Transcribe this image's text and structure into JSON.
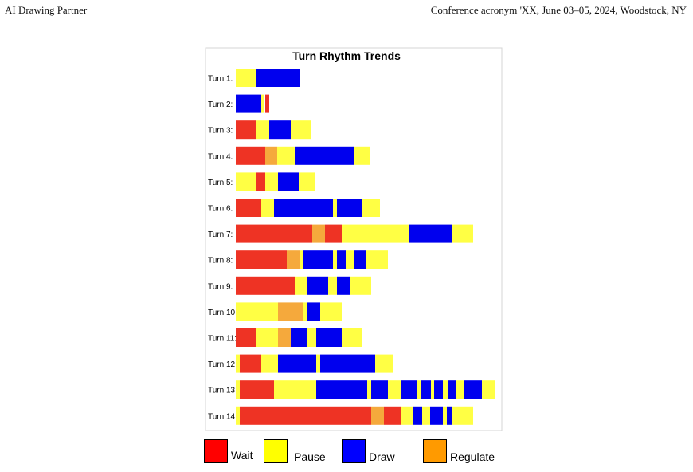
{
  "header": {
    "left": "AI Drawing Partner",
    "right": "Conference acronym 'XX, June 03–05, 2024, Woodstock, NY"
  },
  "colors": {
    "wait": "#ee3324",
    "pause": "#ffff44",
    "draw": "#0000ee",
    "regulate": "#f5a93c"
  },
  "legend": [
    {
      "key": "wait",
      "label": "Wait",
      "color": "#ff0000"
    },
    {
      "key": "pause",
      "label": "Pause",
      "color": "#ffff00"
    },
    {
      "key": "draw",
      "label": "Draw",
      "color": "#0000ff"
    },
    {
      "key": "regulate",
      "label": "Regulate",
      "color": "#ff9a00"
    }
  ],
  "chart_data": {
    "type": "bar",
    "title": "Turn Rhythm Trends",
    "xlabel": "",
    "ylabel": "",
    "stacked": true,
    "x_unit_note": "",
    "rows": [
      {
        "label": "Turn 1:",
        "segments": [
          [
            "pause",
            0,
            26
          ],
          [
            "draw",
            26,
            80
          ]
        ]
      },
      {
        "label": "Turn 2:",
        "segments": [
          [
            "draw",
            0,
            32
          ],
          [
            "pause",
            32,
            36
          ],
          [
            "wait",
            37,
            42
          ]
        ]
      },
      {
        "label": "Turn 3:",
        "segments": [
          [
            "wait",
            0,
            26
          ],
          [
            "pause",
            26,
            42
          ],
          [
            "draw",
            42,
            69
          ],
          [
            "pause",
            69,
            95
          ]
        ]
      },
      {
        "label": "Turn 4:",
        "segments": [
          [
            "wait",
            0,
            37
          ],
          [
            "regulate",
            37,
            52
          ],
          [
            "pause",
            52,
            74
          ],
          [
            "draw",
            74,
            148
          ],
          [
            "pause",
            148,
            169
          ]
        ]
      },
      {
        "label": "Turn 5:",
        "segments": [
          [
            "pause",
            0,
            26
          ],
          [
            "wait",
            26,
            37
          ],
          [
            "pause",
            37,
            53
          ],
          [
            "draw",
            53,
            79
          ],
          [
            "pause",
            79,
            100
          ]
        ]
      },
      {
        "label": "Turn 6:",
        "segments": [
          [
            "wait",
            0,
            32
          ],
          [
            "pause",
            32,
            48
          ],
          [
            "draw",
            48,
            122
          ],
          [
            "pause",
            122,
            127
          ],
          [
            "draw",
            127,
            159
          ],
          [
            "pause",
            159,
            181
          ]
        ]
      },
      {
        "label": "Turn 7:",
        "segments": [
          [
            "wait",
            0,
            96
          ],
          [
            "regulate",
            96,
            112
          ],
          [
            "wait",
            112,
            133
          ],
          [
            "pause",
            133,
            218
          ],
          [
            "draw",
            218,
            271
          ],
          [
            "pause",
            271,
            298
          ]
        ]
      },
      {
        "label": "Turn 8:",
        "segments": [
          [
            "wait",
            0,
            64
          ],
          [
            "regulate",
            64,
            80
          ],
          [
            "pause",
            80,
            85
          ],
          [
            "draw",
            85,
            122
          ],
          [
            "pause",
            122,
            127
          ],
          [
            "draw",
            127,
            138
          ],
          [
            "pause",
            138,
            148
          ],
          [
            "draw",
            148,
            164
          ],
          [
            "pause",
            164,
            191
          ]
        ]
      },
      {
        "label": "Turn 9:",
        "segments": [
          [
            "wait",
            0,
            74
          ],
          [
            "pause",
            74,
            90
          ],
          [
            "draw",
            90,
            116
          ],
          [
            "pause",
            116,
            127
          ],
          [
            "draw",
            127,
            143
          ],
          [
            "pause",
            143,
            170
          ]
        ]
      },
      {
        "label": "Turn 10:",
        "segments": [
          [
            "pause",
            0,
            53
          ],
          [
            "regulate",
            53,
            85
          ],
          [
            "pause",
            85,
            90
          ],
          [
            "draw",
            90,
            106
          ],
          [
            "pause",
            106,
            133
          ]
        ]
      },
      {
        "label": "Turn 11:",
        "segments": [
          [
            "wait",
            0,
            26
          ],
          [
            "pause",
            26,
            53
          ],
          [
            "regulate",
            53,
            69
          ],
          [
            "draw",
            69,
            90
          ],
          [
            "pause",
            90,
            101
          ],
          [
            "draw",
            101,
            133
          ],
          [
            "pause",
            133,
            159
          ]
        ]
      },
      {
        "label": "Turn 12:",
        "segments": [
          [
            "pause",
            0,
            5
          ],
          [
            "wait",
            5,
            32
          ],
          [
            "pause",
            32,
            53
          ],
          [
            "draw",
            53,
            101
          ],
          [
            "pause",
            101,
            106
          ],
          [
            "draw",
            106,
            175
          ],
          [
            "pause",
            175,
            197
          ]
        ]
      },
      {
        "label": "Turn 13:",
        "segments": [
          [
            "pause",
            0,
            5
          ],
          [
            "wait",
            5,
            48
          ],
          [
            "pause",
            48,
            101
          ],
          [
            "draw",
            101,
            165
          ],
          [
            "pause",
            165,
            170
          ],
          [
            "draw",
            170,
            191
          ],
          [
            "pause",
            191,
            207
          ],
          [
            "draw",
            207,
            228
          ],
          [
            "pause",
            228,
            233
          ],
          [
            "draw",
            233,
            245
          ],
          [
            "pause",
            245,
            249
          ],
          [
            "draw",
            249,
            260
          ],
          [
            "pause",
            260,
            266
          ],
          [
            "draw",
            266,
            276
          ],
          [
            "pause",
            276,
            287
          ],
          [
            "draw",
            287,
            309
          ],
          [
            "pause",
            309,
            325
          ]
        ]
      },
      {
        "label": "Turn 14:",
        "segments": [
          [
            "pause",
            0,
            5
          ],
          [
            "wait",
            5,
            170
          ],
          [
            "regulate",
            170,
            186
          ],
          [
            "wait",
            186,
            207
          ],
          [
            "pause",
            207,
            223
          ],
          [
            "draw",
            223,
            234
          ],
          [
            "pause",
            234,
            244
          ],
          [
            "draw",
            244,
            260
          ],
          [
            "pause",
            260,
            265
          ],
          [
            "draw",
            265,
            271
          ],
          [
            "pause",
            271,
            298
          ]
        ]
      }
    ]
  }
}
